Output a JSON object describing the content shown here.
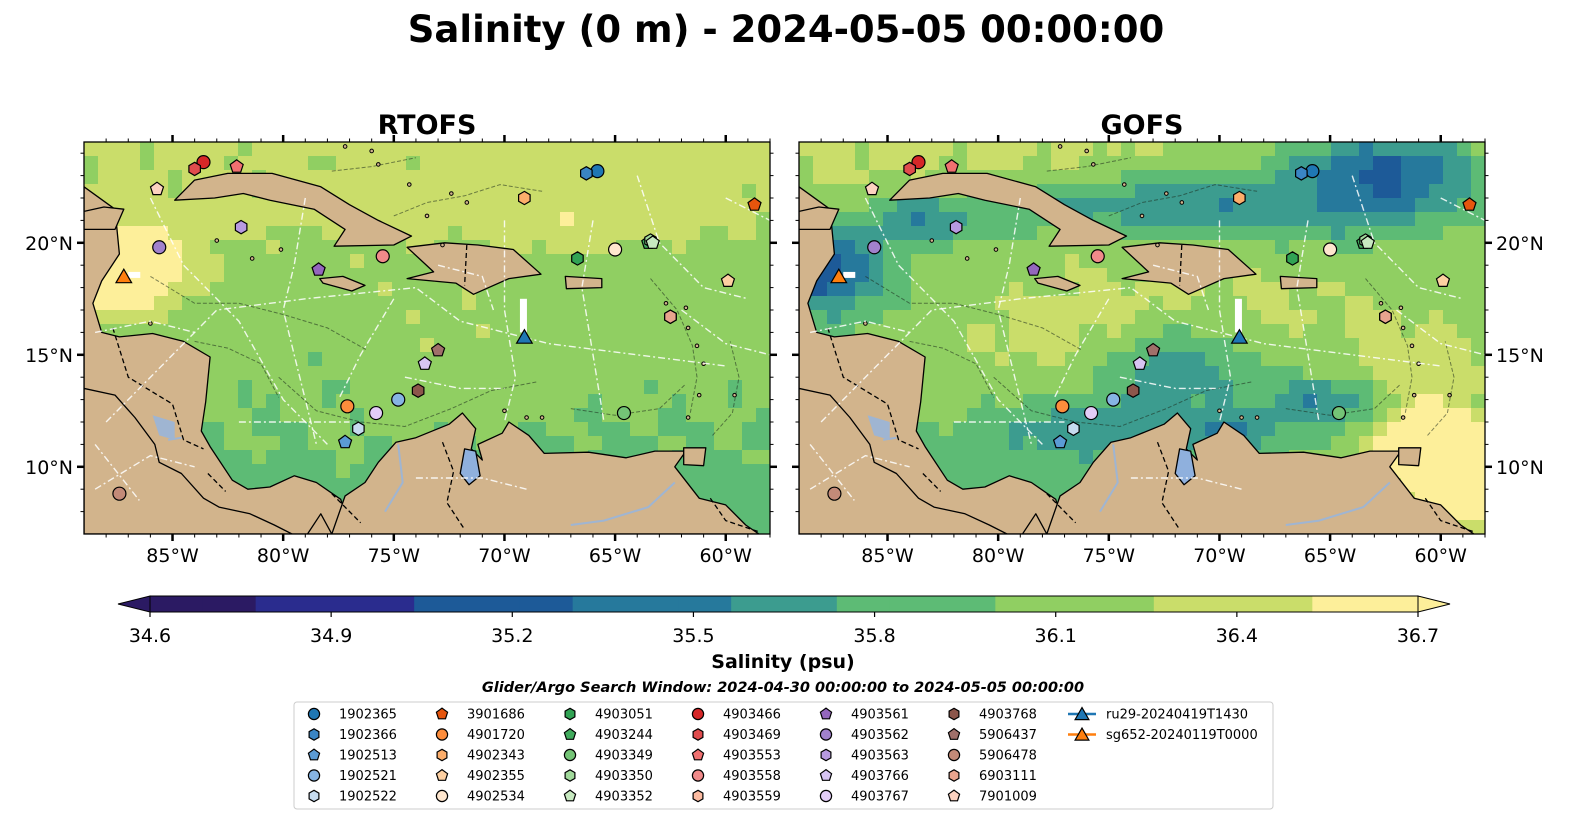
{
  "figure": {
    "title": "Salinity (0 m) - 2024-05-05 00:00:00",
    "colorbar_label": "Salinity (psu)",
    "search_window": "Glider/Argo Search Window: 2024-04-30 00:00:00 to 2024-05-05 00:00:00"
  },
  "colors": {
    "land": "#d2b48c",
    "ocean_ramp": [
      "#2b1a63",
      "#2a2c8e",
      "#1d5a98",
      "#26799c",
      "#3c9c8f",
      "#5dbb75",
      "#90cf62",
      "#cadd6a",
      "#fdef9a"
    ],
    "contour": "#ffffff",
    "background": "#ffffff"
  },
  "chart_data": [
    {
      "type": "heatmap",
      "title": "RTOFS",
      "variable": "Salinity (psu)",
      "xlim": [
        -89,
        -58
      ],
      "ylim": [
        7,
        24.5
      ],
      "xticks": [
        -85,
        -80,
        -75,
        -70,
        -65,
        -60
      ],
      "xtick_labels": [
        "85°W",
        "80°W",
        "75°W",
        "70°W",
        "65°W",
        "60°W"
      ],
      "yticks": [
        10,
        15,
        20
      ],
      "ytick_labels": [
        "10°N",
        "15°N",
        "20°N"
      ],
      "ytick_side": "left"
    },
    {
      "type": "heatmap",
      "title": "GOFS",
      "variable": "Salinity (psu)",
      "xlim": [
        -89,
        -58
      ],
      "ylim": [
        7,
        24.5
      ],
      "xticks": [
        -85,
        -80,
        -75,
        -70,
        -65,
        -60
      ],
      "xtick_labels": [
        "85°W",
        "80°W",
        "75°W",
        "70°W",
        "65°W",
        "60°W"
      ],
      "yticks": [
        10,
        15,
        20
      ],
      "ytick_labels": [
        "10°N",
        "15°N",
        "20°N"
      ],
      "ytick_side": "right"
    }
  ],
  "colorbar": {
    "min": 34.6,
    "max": 36.7,
    "ticks": [
      34.6,
      34.9,
      35.2,
      35.5,
      35.8,
      36.1,
      36.4,
      36.7
    ],
    "tick_labels": [
      "34.6",
      "34.9",
      "35.2",
      "35.5",
      "35.8",
      "36.1",
      "36.4",
      "36.7"
    ],
    "extend": "both"
  },
  "observations": [
    {
      "id": "1902365",
      "marker": "circle",
      "color": "#1f77b4",
      "lon": -65.8,
      "lat": 23.2
    },
    {
      "id": "1902366",
      "marker": "hexagon",
      "color": "#3a85c4",
      "lon": -66.3,
      "lat": 23.1
    },
    {
      "id": "1902513",
      "marker": "pentagon",
      "color": "#5b9bd5",
      "lon": -77.2,
      "lat": 11.1
    },
    {
      "id": "1902521",
      "marker": "circle",
      "color": "#86b4e3",
      "lon": -74.8,
      "lat": 13.0
    },
    {
      "id": "1902522",
      "marker": "hexagon",
      "color": "#c6dbef",
      "lon": -76.6,
      "lat": 11.7
    },
    {
      "id": "3901686",
      "marker": "pentagon",
      "color": "#e6550d",
      "lon": -58.7,
      "lat": 21.7
    },
    {
      "id": "4901720",
      "marker": "circle",
      "color": "#fd8d3c",
      "lon": -77.1,
      "lat": 12.7
    },
    {
      "id": "4902343",
      "marker": "hexagon",
      "color": "#fdae6b",
      "lon": -69.1,
      "lat": 22.0
    },
    {
      "id": "4902355",
      "marker": "pentagon",
      "color": "#fdd0a2",
      "lon": -59.9,
      "lat": 18.3
    },
    {
      "id": "4902534",
      "marker": "circle",
      "color": "#fee6ce",
      "lon": -65.0,
      "lat": 19.7
    },
    {
      "id": "4903051",
      "marker": "hexagon",
      "color": "#31a354",
      "lon": -66.7,
      "lat": 19.3
    },
    {
      "id": "4903244",
      "marker": "pentagon",
      "color": "#41ab5d",
      "lon": -63.5,
      "lat": 20.0
    },
    {
      "id": "4903349",
      "marker": "circle",
      "color": "#74c476",
      "lon": -64.6,
      "lat": 12.4
    },
    {
      "id": "4903350",
      "marker": "hexagon",
      "color": "#a1d99b",
      "lon": -63.4,
      "lat": 20.1
    },
    {
      "id": "4903352",
      "marker": "pentagon",
      "color": "#c7e9c0",
      "lon": -63.3,
      "lat": 20.0
    },
    {
      "id": "4903466",
      "marker": "circle",
      "color": "#d62728",
      "lon": -83.6,
      "lat": 23.6
    },
    {
      "id": "4903469",
      "marker": "hexagon",
      "color": "#e04c4d",
      "lon": -84.0,
      "lat": 23.3
    },
    {
      "id": "4903553",
      "marker": "pentagon",
      "color": "#f07070",
      "lon": -82.1,
      "lat": 23.4
    },
    {
      "id": "4903558",
      "marker": "circle",
      "color": "#f08a8a",
      "lon": -75.5,
      "lat": 19.4
    },
    {
      "id": "4903559",
      "marker": "hexagon",
      "color": "#fcbba1",
      "lon": -62.5,
      "lat": 16.7
    },
    {
      "id": "4903561",
      "marker": "pentagon",
      "color": "#9467bd",
      "lon": -78.4,
      "lat": 18.8
    },
    {
      "id": "4903562",
      "marker": "circle",
      "color": "#a181cc",
      "lon": -85.6,
      "lat": 19.8
    },
    {
      "id": "4903563",
      "marker": "hexagon",
      "color": "#b79ae0",
      "lon": -81.9,
      "lat": 20.7
    },
    {
      "id": "4903766",
      "marker": "pentagon",
      "color": "#d7c4f2",
      "lon": -73.6,
      "lat": 14.6
    },
    {
      "id": "4903767",
      "marker": "circle",
      "color": "#e3cdf7",
      "lon": -75.8,
      "lat": 12.4
    },
    {
      "id": "4903768",
      "marker": "hexagon",
      "color": "#8c564b",
      "lon": -73.9,
      "lat": 13.4
    },
    {
      "id": "5906437",
      "marker": "pentagon",
      "color": "#a0706a",
      "lon": -73.0,
      "lat": 15.2
    },
    {
      "id": "5906478",
      "marker": "circle",
      "color": "#c38a78",
      "lon": -87.4,
      "lat": 8.8
    },
    {
      "id": "6903111",
      "marker": "hexagon",
      "color": "#e8a48e",
      "lon": -62.5,
      "lat": 16.7
    },
    {
      "id": "7901009",
      "marker": "pentagon",
      "color": "#fcd2c0",
      "lon": -85.7,
      "lat": 22.4
    },
    {
      "id": "ru29-20240419T1430",
      "marker": "triangle",
      "color": "#1f77b4",
      "lon": -69.1,
      "lat": 15.8,
      "line": true
    },
    {
      "id": "sg652-20240119T0000",
      "marker": "triangle",
      "color": "#ff7f0e",
      "lon": -87.2,
      "lat": 18.5,
      "line": true
    }
  ]
}
